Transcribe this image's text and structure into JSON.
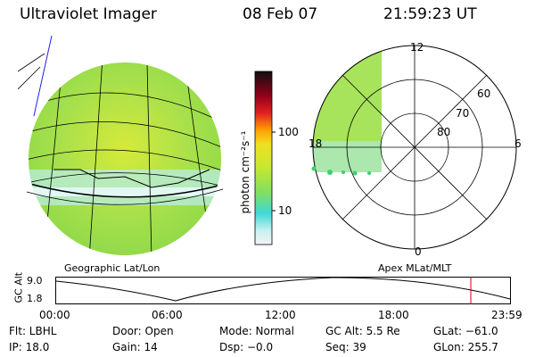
{
  "header": {
    "instrument": "Ultraviolet Imager",
    "date": "08 Feb 07",
    "time": "21:59:23 UT"
  },
  "colorbar": {
    "unit_label": "photon cm⁻²s⁻¹",
    "ticks": [
      "100",
      "10"
    ],
    "scale": "log"
  },
  "polar_plot": {
    "mlt_labels": {
      "top": "12",
      "left": "18",
      "right": "6",
      "bottom": "0"
    },
    "lat_labels": [
      "60",
      "70",
      "80"
    ]
  },
  "panel_labels": {
    "left": "Geographic Lat/Lon",
    "right": "Apex MLat/MLT"
  },
  "altitude_plot": {
    "ylabel": "GC Alt",
    "yticks": [
      "9.0",
      "1.8"
    ],
    "xticks": [
      "00:00",
      "06:00",
      "12:00",
      "18:00",
      "23:59"
    ],
    "marker_color": "#cc0000"
  },
  "info": {
    "row1": {
      "flt": "Flt: LBHL",
      "door": "Door: Open",
      "mode": "Mode: Normal",
      "gcalt": "GC Alt: 5.5 Re",
      "glat": "GLat: −61.0"
    },
    "row2": {
      "ip": "IP: 18.0",
      "gain": "Gain: 14",
      "dsp": "Dsp:   −0.0",
      "seq": "Seq: 39",
      "glon": "GLon: 255.7"
    }
  },
  "colors": {
    "aurora_green": "#9ee04a",
    "aurora_yellow": "#d6ea3a",
    "cyan_edge": "#7fe0e0"
  }
}
